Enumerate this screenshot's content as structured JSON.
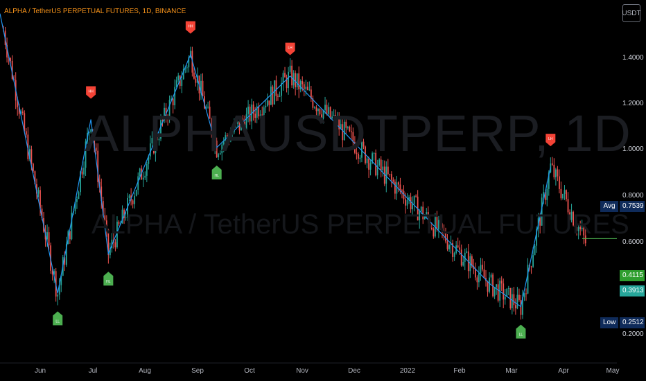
{
  "header": {
    "title": "ALPHA / TetherUS PERPETUAL FUTURES, 1D, BINANCE",
    "currency": "USDT"
  },
  "watermark": {
    "symbol": "ALPHAUSDTPERP, 1D",
    "name": "ALPHA / TetherUS PERPETUAL FUTURES"
  },
  "colors": {
    "background": "#000000",
    "up_candle": "#26a69a",
    "down_candle": "#ef5350",
    "zigzag": "#2196f3",
    "title": "#f7931a",
    "high_marker": "#f44336",
    "low_marker": "#4caf50"
  },
  "price_tags": {
    "avg": {
      "label": "Avg",
      "value": "0.7539"
    },
    "current_green": {
      "value": "0.4115"
    },
    "current_teal": {
      "value": "0.3913"
    },
    "low": {
      "label": "Low",
      "value": "0.2512"
    }
  },
  "chart_data": {
    "type": "candlestick",
    "title": "ALPHA / TetherUS PERPETUAL FUTURES, 1D, BINANCE",
    "y_scale": "log",
    "ylim": [
      0.175,
      2.2
    ],
    "y_ticks": [
      "1.4000",
      "1.2000",
      "1.0000",
      "0.8000",
      "0.6000",
      "0.2000"
    ],
    "x_ticks": [
      "Jun",
      "Jul",
      "Aug",
      "Sep",
      "Oct",
      "Nov",
      "Dec",
      "2022",
      "Feb",
      "Mar",
      "Apr",
      "May"
    ],
    "x_range": [
      "2021-05-20",
      "2022-05-02"
    ],
    "zigzag": [
      {
        "date": "2021-05-20",
        "value": 2.0
      },
      {
        "date": "2021-06-22",
        "value": 0.28
      },
      {
        "date": "2021-07-11",
        "value": 0.95
      },
      {
        "date": "2021-07-21",
        "value": 0.37
      },
      {
        "date": "2021-09-06",
        "value": 1.5
      },
      {
        "date": "2021-09-21",
        "value": 0.78
      },
      {
        "date": "2021-11-02",
        "value": 1.29
      },
      {
        "date": "2022-02-24",
        "value": 0.3
      },
      {
        "date": "2022-03-14",
        "value": 0.255
      },
      {
        "date": "2022-03-31",
        "value": 0.68
      }
    ],
    "pivot_markers": [
      {
        "label": "LL",
        "kind": "low",
        "date": "2021-06-22",
        "price": 0.28
      },
      {
        "label": "HH",
        "kind": "high",
        "date": "2021-07-11",
        "price": 0.95
      },
      {
        "label": "HL",
        "kind": "low",
        "date": "2021-07-21",
        "price": 0.37
      },
      {
        "label": "HH",
        "kind": "high",
        "date": "2021-09-06",
        "price": 1.5
      },
      {
        "label": "HL",
        "kind": "low",
        "date": "2021-09-21",
        "price": 0.78
      },
      {
        "label": "LH",
        "kind": "high",
        "date": "2021-11-02",
        "price": 1.29
      },
      {
        "label": "LL",
        "kind": "low",
        "date": "2022-03-14",
        "price": 0.255
      },
      {
        "label": "LH",
        "kind": "high",
        "date": "2022-03-31",
        "price": 0.68
      }
    ],
    "last_close": 0.4115,
    "ohlc_note": "Daily candles; values estimated along the path shown"
  }
}
